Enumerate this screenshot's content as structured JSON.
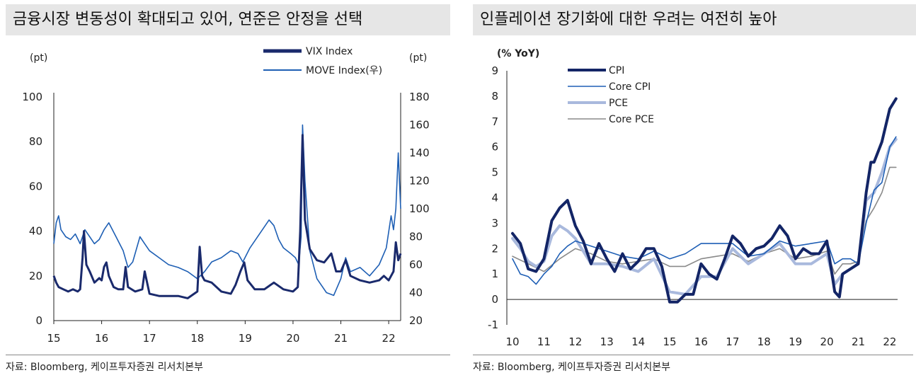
{
  "left": {
    "title": "금융시장 변동성이 확대되고 있어, 연준은 안정을 선택",
    "source": "자료: Bloomberg, 케이프투자증권 리서치본부"
  },
  "right": {
    "title": "인플레이션 장기화에 대한 우려는 여전히 높아",
    "source": "자료: Bloomberg, 케이프투자증권 리서치본부"
  },
  "chart_data": [
    {
      "type": "line",
      "title": "금융시장 변동성이 확대되고 있어, 연준은 안정을 선택",
      "y_unit_left": "(pt)",
      "y_unit_right": "(pt)",
      "x_tick_labels": [
        "15",
        "16",
        "17",
        "18",
        "19",
        "20",
        "21",
        "22"
      ],
      "xlim": [
        2015.0,
        2022.25
      ],
      "ylim_left": [
        0,
        100
      ],
      "ylim_right": [
        20,
        180
      ],
      "y_ticks_left": [
        0,
        20,
        40,
        60,
        80,
        100
      ],
      "y_ticks_right": [
        20,
        40,
        60,
        80,
        100,
        120,
        140,
        160,
        180
      ],
      "legend_position": "top-center",
      "colors": {
        "vix": "#1a2a6c",
        "move": "#1e5fb4"
      },
      "series": [
        {
          "name": "VIX Index",
          "axis": "left",
          "x": [
            2015.0,
            2015.05,
            2015.1,
            2015.2,
            2015.3,
            2015.4,
            2015.5,
            2015.55,
            2015.6,
            2015.63,
            2015.68,
            2015.75,
            2015.85,
            2015.95,
            2016.0,
            2016.05,
            2016.1,
            2016.15,
            2016.25,
            2016.35,
            2016.45,
            2016.5,
            2016.55,
            2016.7,
            2016.85,
            2016.9,
            2017.0,
            2017.2,
            2017.4,
            2017.6,
            2017.8,
            2018.0,
            2018.05,
            2018.1,
            2018.15,
            2018.3,
            2018.5,
            2018.7,
            2018.8,
            2018.9,
            2018.98,
            2019.05,
            2019.2,
            2019.4,
            2019.6,
            2019.8,
            2020.0,
            2020.1,
            2020.15,
            2020.2,
            2020.25,
            2020.35,
            2020.5,
            2020.65,
            2020.8,
            2020.9,
            2021.0,
            2021.1,
            2021.2,
            2021.4,
            2021.6,
            2021.8,
            2021.9,
            2022.0,
            2022.1,
            2022.15,
            2022.2,
            2022.25
          ],
          "y": [
            20,
            17,
            15,
            14,
            13,
            14,
            13,
            14,
            28,
            40,
            25,
            22,
            17,
            19,
            18,
            24,
            26,
            20,
            15,
            14,
            14,
            24,
            15,
            13,
            14,
            22,
            12,
            11,
            11,
            11,
            10,
            13,
            33,
            20,
            18,
            17,
            13,
            12,
            16,
            22,
            26,
            18,
            14,
            14,
            17,
            14,
            13,
            15,
            40,
            83,
            45,
            32,
            27,
            26,
            30,
            22,
            22,
            27,
            20,
            18,
            17,
            18,
            20,
            18,
            22,
            35,
            27,
            30
          ]
        },
        {
          "name": "MOVE Index(우)",
          "axis": "right",
          "x": [
            2015.0,
            2015.05,
            2015.1,
            2015.15,
            2015.25,
            2015.35,
            2015.45,
            2015.55,
            2015.65,
            2015.75,
            2015.85,
            2015.95,
            2016.05,
            2016.15,
            2016.3,
            2016.45,
            2016.55,
            2016.65,
            2016.8,
            2016.9,
            2017.0,
            2017.2,
            2017.4,
            2017.6,
            2017.8,
            2018.0,
            2018.15,
            2018.3,
            2018.5,
            2018.7,
            2018.85,
            2018.95,
            2019.1,
            2019.3,
            2019.5,
            2019.6,
            2019.7,
            2019.8,
            2019.95,
            2020.05,
            2020.12,
            2020.17,
            2020.2,
            2020.25,
            2020.35,
            2020.5,
            2020.7,
            2020.85,
            2021.0,
            2021.1,
            2021.2,
            2021.4,
            2021.6,
            2021.8,
            2021.95,
            2022.05,
            2022.1,
            2022.15,
            2022.2,
            2022.25
          ],
          "y": [
            75,
            90,
            95,
            85,
            80,
            78,
            82,
            75,
            85,
            80,
            75,
            78,
            85,
            90,
            80,
            70,
            58,
            62,
            80,
            75,
            70,
            65,
            60,
            58,
            55,
            50,
            55,
            62,
            65,
            70,
            68,
            62,
            72,
            82,
            92,
            88,
            78,
            72,
            68,
            65,
            60,
            80,
            160,
            120,
            70,
            50,
            40,
            38,
            50,
            65,
            55,
            58,
            52,
            60,
            72,
            95,
            85,
            100,
            140,
            100
          ]
        }
      ]
    },
    {
      "type": "line",
      "title": "인플레이션 장기화에 대한 우려는 여전히 높아",
      "y_unit": "(% YoY)",
      "x_tick_labels": [
        "10",
        "11",
        "12",
        "13",
        "14",
        "15",
        "16",
        "17",
        "18",
        "19",
        "20",
        "21",
        "22"
      ],
      "xlim": [
        2010.0,
        2022.25
      ],
      "ylim": [
        -1,
        9
      ],
      "y_ticks": [
        -1,
        0,
        1,
        2,
        3,
        4,
        5,
        6,
        7,
        8,
        9
      ],
      "legend_position": "top-left",
      "colors": {
        "cpi": "#132566",
        "core_cpi": "#1f5fb5",
        "pce": "#a9b9dd",
        "core_pce": "#8a8a8a"
      },
      "series": [
        {
          "name": "CPI",
          "x": [
            2010.0,
            2010.25,
            2010.5,
            2010.75,
            2011.0,
            2011.25,
            2011.5,
            2011.75,
            2012.0,
            2012.25,
            2012.5,
            2012.75,
            2013.0,
            2013.25,
            2013.5,
            2013.75,
            2014.0,
            2014.25,
            2014.5,
            2014.75,
            2015.0,
            2015.25,
            2015.5,
            2015.75,
            2016.0,
            2016.25,
            2016.5,
            2016.75,
            2017.0,
            2017.25,
            2017.5,
            2017.75,
            2018.0,
            2018.25,
            2018.5,
            2018.75,
            2019.0,
            2019.25,
            2019.5,
            2019.75,
            2020.0,
            2020.25,
            2020.4,
            2020.5,
            2020.75,
            2021.0,
            2021.25,
            2021.4,
            2021.5,
            2021.75,
            2022.0,
            2022.2
          ],
          "y": [
            2.6,
            2.2,
            1.2,
            1.1,
            1.6,
            3.1,
            3.6,
            3.9,
            2.9,
            2.3,
            1.4,
            2.2,
            1.6,
            1.1,
            1.8,
            1.2,
            1.5,
            2.0,
            2.0,
            1.3,
            -0.1,
            -0.1,
            0.2,
            0.2,
            1.4,
            1.0,
            0.8,
            1.6,
            2.5,
            2.2,
            1.7,
            2.0,
            2.1,
            2.4,
            2.9,
            2.5,
            1.6,
            2.0,
            1.8,
            1.8,
            2.3,
            0.3,
            0.1,
            1.0,
            1.2,
            1.4,
            4.2,
            5.4,
            5.4,
            6.2,
            7.5,
            7.9
          ]
        },
        {
          "name": "Core CPI",
          "x": [
            2010.0,
            2010.25,
            2010.5,
            2010.75,
            2011.0,
            2011.25,
            2011.5,
            2011.75,
            2012.0,
            2012.5,
            2013.0,
            2013.5,
            2014.0,
            2014.5,
            2015.0,
            2015.5,
            2016.0,
            2016.5,
            2017.0,
            2017.5,
            2018.0,
            2018.5,
            2019.0,
            2019.5,
            2020.0,
            2020.25,
            2020.5,
            2020.75,
            2021.0,
            2021.25,
            2021.5,
            2021.75,
            2022.0,
            2022.2
          ],
          "y": [
            1.6,
            1.0,
            0.9,
            0.6,
            1.0,
            1.3,
            1.8,
            2.1,
            2.3,
            2.1,
            1.9,
            1.7,
            1.6,
            1.9,
            1.6,
            1.8,
            2.2,
            2.2,
            2.2,
            1.7,
            1.8,
            2.3,
            2.1,
            2.2,
            2.3,
            1.4,
            1.6,
            1.6,
            1.4,
            3.0,
            4.3,
            4.6,
            6.0,
            6.4
          ]
        },
        {
          "name": "PCE",
          "x": [
            2010.0,
            2010.25,
            2010.5,
            2010.75,
            2011.0,
            2011.25,
            2011.5,
            2011.75,
            2012.0,
            2012.5,
            2013.0,
            2013.5,
            2014.0,
            2014.5,
            2015.0,
            2015.5,
            2016.0,
            2016.5,
            2017.0,
            2017.5,
            2018.0,
            2018.5,
            2019.0,
            2019.5,
            2020.0,
            2020.25,
            2020.5,
            2020.75,
            2021.0,
            2021.25,
            2021.5,
            2021.75,
            2022.0,
            2022.2
          ],
          "y": [
            2.4,
            2.0,
            1.5,
            1.3,
            1.5,
            2.5,
            2.9,
            2.7,
            2.4,
            1.4,
            1.4,
            1.3,
            1.1,
            1.6,
            0.3,
            0.2,
            0.9,
            0.9,
            2.0,
            1.4,
            1.8,
            2.2,
            1.4,
            1.4,
            1.8,
            0.6,
            1.0,
            1.2,
            1.4,
            3.9,
            4.2,
            5.0,
            6.0,
            6.3
          ]
        },
        {
          "name": "Core PCE",
          "x": [
            2010.0,
            2010.5,
            2011.0,
            2011.5,
            2012.0,
            2012.5,
            2013.0,
            2013.5,
            2014.0,
            2014.5,
            2015.0,
            2015.5,
            2016.0,
            2016.5,
            2017.0,
            2017.5,
            2018.0,
            2018.5,
            2019.0,
            2019.5,
            2020.0,
            2020.25,
            2020.5,
            2020.75,
            2021.0,
            2021.25,
            2021.5,
            2021.75,
            2022.0,
            2022.2
          ],
          "y": [
            1.7,
            1.4,
            1.1,
            1.6,
            2.0,
            1.8,
            1.5,
            1.4,
            1.5,
            1.6,
            1.3,
            1.3,
            1.6,
            1.7,
            1.8,
            1.5,
            1.8,
            2.0,
            1.6,
            1.7,
            1.9,
            1.0,
            1.4,
            1.4,
            1.5,
            3.1,
            3.6,
            4.2,
            5.2,
            5.2
          ]
        }
      ]
    }
  ]
}
